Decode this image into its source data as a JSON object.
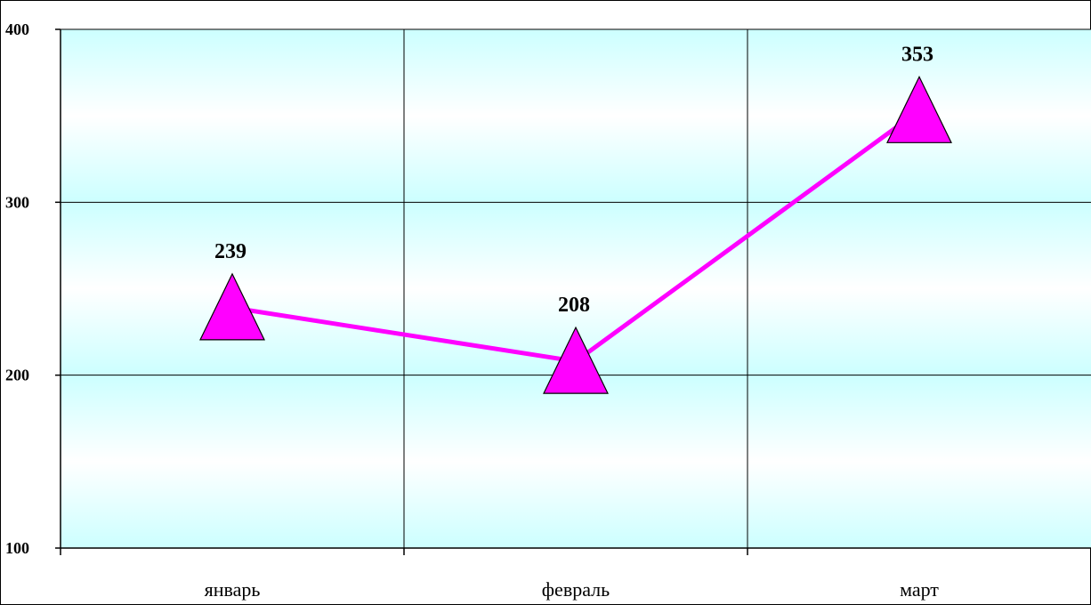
{
  "chart_data": {
    "type": "line",
    "categories": [
      "январь",
      "февраль",
      "март"
    ],
    "series": [
      {
        "values": [
          239,
          208,
          353
        ]
      }
    ],
    "data_labels": [
      "239",
      "208",
      "353"
    ],
    "y_ticks": [
      100,
      200,
      300,
      400
    ],
    "y_tick_labels": [
      "100",
      "200",
      "300",
      "400"
    ],
    "ylim": [
      100,
      400
    ],
    "title": "",
    "xlabel": "",
    "ylabel": "",
    "grid": true,
    "legend": "none",
    "colors": {
      "line": "#FF00FF",
      "marker_fill": "#FF00FF",
      "marker_stroke": "#000000",
      "plot_bg_edge": "#CCFFFF",
      "plot_bg_center": "#FFFFFF",
      "grid": "#000000"
    },
    "marker": "triangle"
  }
}
